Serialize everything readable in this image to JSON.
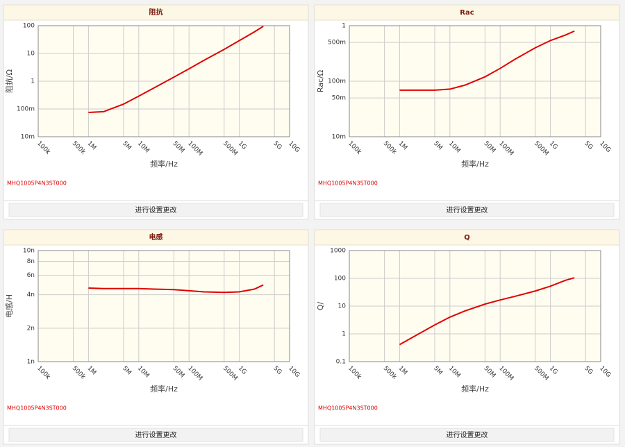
{
  "chart_data": [
    {
      "type": "line",
      "title": "阻抗",
      "x_label": "频率/Hz",
      "y_label": "阻抗/Ω",
      "annotation": "MHQ1005P4N3ST000",
      "log_x": true,
      "log_y": true,
      "grid": true,
      "x": [
        1000000,
        2000000,
        5000000,
        10000000,
        20000000,
        50000000,
        100000000,
        200000000,
        500000000,
        1000000000,
        2000000000,
        3000000000
      ],
      "series": [
        {
          "color": "#e00000",
          "values": [
            0.075,
            0.08,
            0.15,
            0.29,
            0.57,
            1.4,
            2.8,
            5.7,
            14,
            29,
            60,
            95
          ]
        }
      ],
      "xlim": [
        100000,
        10000000000
      ],
      "xticks": [
        {
          "value": 100000,
          "label": "100k"
        },
        {
          "value": 500000,
          "label": "500k"
        },
        {
          "value": 1000000,
          "label": "1M"
        },
        {
          "value": 5000000,
          "label": "5M"
        },
        {
          "value": 10000000,
          "label": "10M"
        },
        {
          "value": 50000000,
          "label": "50M"
        },
        {
          "value": 100000000,
          "label": "100M"
        },
        {
          "value": 500000000,
          "label": "500M"
        },
        {
          "value": 1000000000,
          "label": "1G"
        },
        {
          "value": 5000000000,
          "label": "5G"
        },
        {
          "value": 10000000000,
          "label": "10G"
        }
      ],
      "ylim": [
        0.01,
        100
      ],
      "yticks": [
        {
          "value": 0.01,
          "label": "10m"
        },
        {
          "value": 0.1,
          "label": "100m"
        },
        1,
        10,
        100
      ]
    },
    {
      "type": "line",
      "title": "Rac",
      "x_label": "频率/Hz",
      "y_label": "Rac/Ω",
      "annotation": "MHQ1005P4N3ST000",
      "log_x": true,
      "log_y": true,
      "grid": true,
      "x": [
        1000000,
        2000000,
        5000000,
        10000000,
        20000000,
        50000000,
        100000000,
        200000000,
        500000000,
        1000000000,
        2000000000,
        3000000000
      ],
      "series": [
        {
          "color": "#e00000",
          "values": [
            0.069,
            0.069,
            0.069,
            0.072,
            0.085,
            0.12,
            0.17,
            0.25,
            0.4,
            0.54,
            0.68,
            0.8
          ]
        }
      ],
      "xlim": [
        100000,
        10000000000
      ],
      "xticks": [
        {
          "value": 100000,
          "label": "100k"
        },
        {
          "value": 500000,
          "label": "500k"
        },
        {
          "value": 1000000,
          "label": "1M"
        },
        {
          "value": 5000000,
          "label": "5M"
        },
        {
          "value": 10000000,
          "label": "10M"
        },
        {
          "value": 50000000,
          "label": "50M"
        },
        {
          "value": 100000000,
          "label": "100M"
        },
        {
          "value": 500000000,
          "label": "500M"
        },
        {
          "value": 1000000000,
          "label": "1G"
        },
        {
          "value": 5000000000,
          "label": "5G"
        },
        {
          "value": 10000000000,
          "label": "10G"
        }
      ],
      "ylim": [
        0.01,
        1
      ],
      "yticks": [
        {
          "value": 0.01,
          "label": "10m"
        },
        {
          "value": 0.05,
          "label": "50m"
        },
        {
          "value": 0.1,
          "label": "100m"
        },
        {
          "value": 0.5,
          "label": "500m"
        },
        1
      ]
    },
    {
      "type": "line",
      "title": "电感",
      "x_label": "频率/Hz",
      "y_label": "电感/H",
      "annotation": "MHQ1005P4N3ST000",
      "log_x": true,
      "log_y": true,
      "grid": true,
      "x": [
        1000000,
        2000000,
        5000000,
        10000000,
        20000000,
        50000000,
        100000000,
        200000000,
        500000000,
        1000000000,
        2000000000,
        3000000000
      ],
      "series": [
        {
          "color": "#e00000",
          "values": [
            4.6e-09,
            4.55e-09,
            4.55e-09,
            4.55e-09,
            4.5e-09,
            4.45e-09,
            4.35e-09,
            4.25e-09,
            4.2e-09,
            4.25e-09,
            4.5e-09,
            4.9e-09
          ]
        }
      ],
      "xlim": [
        100000,
        10000000000
      ],
      "xticks": [
        {
          "value": 100000,
          "label": "100k"
        },
        {
          "value": 500000,
          "label": "500k"
        },
        {
          "value": 1000000,
          "label": "1M"
        },
        {
          "value": 5000000,
          "label": "5M"
        },
        {
          "value": 10000000,
          "label": "10M"
        },
        {
          "value": 50000000,
          "label": "50M"
        },
        {
          "value": 100000000,
          "label": "100M"
        },
        {
          "value": 500000000,
          "label": "500M"
        },
        {
          "value": 1000000000,
          "label": "1G"
        },
        {
          "value": 5000000000,
          "label": "5G"
        },
        {
          "value": 10000000000,
          "label": "10G"
        }
      ],
      "ylim": [
        1e-09,
        1e-08
      ],
      "yticks": [
        {
          "value": 1e-09,
          "label": "1n"
        },
        {
          "value": 2e-09,
          "label": "2n"
        },
        {
          "value": 4e-09,
          "label": "4n"
        },
        {
          "value": 6e-09,
          "label": "6n"
        },
        {
          "value": 8e-09,
          "label": "8n"
        },
        {
          "value": 1e-08,
          "label": "10n"
        }
      ]
    },
    {
      "type": "line",
      "title": "Q",
      "x_label": "频率/Hz",
      "y_label": "Q/",
      "annotation": "MHQ1005P4N3ST000",
      "log_x": true,
      "log_y": true,
      "grid": true,
      "x": [
        1000000,
        2000000,
        5000000,
        10000000,
        20000000,
        50000000,
        100000000,
        200000000,
        500000000,
        1000000000,
        2000000000,
        3000000000
      ],
      "series": [
        {
          "color": "#e00000",
          "values": [
            0.41,
            0.83,
            2.1,
            4,
            6.7,
            11.8,
            16.6,
            22.6,
            35,
            52,
            85,
            105
          ]
        }
      ],
      "xlim": [
        100000,
        10000000000
      ],
      "xticks": [
        {
          "value": 100000,
          "label": "100k"
        },
        {
          "value": 500000,
          "label": "500k"
        },
        {
          "value": 1000000,
          "label": "1M"
        },
        {
          "value": 5000000,
          "label": "5M"
        },
        {
          "value": 10000000,
          "label": "10M"
        },
        {
          "value": 50000000,
          "label": "50M"
        },
        {
          "value": 100000000,
          "label": "100M"
        },
        {
          "value": 500000000,
          "label": "500M"
        },
        {
          "value": 1000000000,
          "label": "1G"
        },
        {
          "value": 5000000000,
          "label": "5G"
        },
        {
          "value": 10000000000,
          "label": "10G"
        }
      ],
      "ylim": [
        0.1,
        1000
      ],
      "yticks": [
        {
          "value": 0.1,
          "label": "0.1"
        },
        1,
        10,
        100,
        {
          "value": 1000,
          "label": "1000"
        }
      ]
    }
  ],
  "buttons": [
    "进行设置更改",
    "进行设置更改",
    "进行设置更改",
    "进行设置更改"
  ]
}
